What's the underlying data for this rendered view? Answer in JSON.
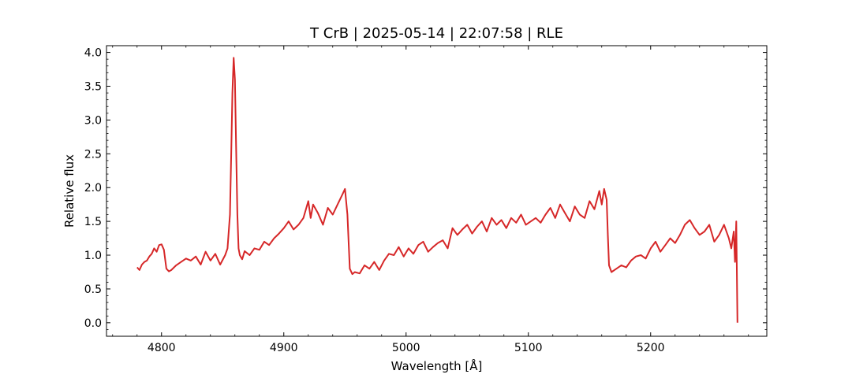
{
  "chart_data": {
    "type": "line",
    "title": "T CrB | 2025-05-14 | 22:07:58 | RLE",
    "xlabel": "Wavelength [Å]",
    "ylabel": "Relative flux",
    "xlim": [
      4755,
      5295
    ],
    "ylim": [
      -0.2,
      4.1
    ],
    "x_ticks": [
      4800,
      4900,
      5000,
      5100,
      5200
    ],
    "x_tick_labels": [
      "4800",
      "4900",
      "5000",
      "5100",
      "5200"
    ],
    "y_ticks": [
      0.0,
      0.5,
      1.0,
      1.5,
      2.0,
      2.5,
      3.0,
      3.5,
      4.0
    ],
    "y_tick_labels": [
      "0.0",
      "0.5",
      "1.0",
      "1.5",
      "2.0",
      "2.5",
      "3.0",
      "3.5",
      "4.0"
    ],
    "grid": false,
    "series": [
      {
        "color": "#d62728",
        "x": [
          4780,
          4782,
          4784,
          4786,
          4788,
          4790,
          4792,
          4794,
          4796,
          4798,
          4800,
          4802,
          4804,
          4806,
          4808,
          4812,
          4816,
          4820,
          4824,
          4828,
          4832,
          4836,
          4840,
          4844,
          4848,
          4852,
          4854,
          4856,
          4857,
          4858,
          4859,
          4860,
          4861,
          4862,
          4863,
          4864,
          4866,
          4868,
          4872,
          4876,
          4880,
          4884,
          4888,
          4892,
          4896,
          4900,
          4904,
          4908,
          4912,
          4916,
          4920,
          4922,
          4924,
          4928,
          4932,
          4936,
          4940,
          4944,
          4948,
          4950,
          4952,
          4953,
          4954,
          4956,
          4958,
          4962,
          4966,
          4970,
          4974,
          4978,
          4982,
          4986,
          4990,
          4994,
          4998,
          5002,
          5006,
          5010,
          5014,
          5018,
          5022,
          5026,
          5030,
          5034,
          5038,
          5042,
          5046,
          5050,
          5054,
          5058,
          5062,
          5066,
          5070,
          5074,
          5078,
          5082,
          5086,
          5090,
          5094,
          5098,
          5102,
          5106,
          5110,
          5114,
          5118,
          5122,
          5126,
          5130,
          5134,
          5138,
          5142,
          5146,
          5150,
          5154,
          5158,
          5160,
          5162,
          5164,
          5165,
          5166,
          5168,
          5172,
          5176,
          5180,
          5184,
          5188,
          5192,
          5196,
          5200,
          5204,
          5208,
          5212,
          5216,
          5220,
          5224,
          5228,
          5232,
          5236,
          5240,
          5244,
          5248,
          5252,
          5256,
          5260,
          5264,
          5266,
          5268,
          5269,
          5270,
          5271
        ],
        "y": [
          0.82,
          0.78,
          0.86,
          0.9,
          0.92,
          0.98,
          1.02,
          1.1,
          1.05,
          1.15,
          1.16,
          1.08,
          0.8,
          0.76,
          0.78,
          0.85,
          0.9,
          0.95,
          0.92,
          0.98,
          0.86,
          1.05,
          0.92,
          1.02,
          0.86,
          1.0,
          1.1,
          1.6,
          2.5,
          3.4,
          3.92,
          3.6,
          2.6,
          1.6,
          1.1,
          1.0,
          0.94,
          1.06,
          1.0,
          1.1,
          1.08,
          1.2,
          1.15,
          1.25,
          1.32,
          1.4,
          1.5,
          1.38,
          1.45,
          1.55,
          1.8,
          1.55,
          1.75,
          1.62,
          1.45,
          1.7,
          1.6,
          1.75,
          1.9,
          1.98,
          1.6,
          1.2,
          0.8,
          0.72,
          0.75,
          0.73,
          0.85,
          0.8,
          0.9,
          0.78,
          0.92,
          1.02,
          1.0,
          1.12,
          0.98,
          1.1,
          1.02,
          1.15,
          1.2,
          1.05,
          1.12,
          1.18,
          1.22,
          1.1,
          1.4,
          1.3,
          1.38,
          1.45,
          1.32,
          1.42,
          1.5,
          1.35,
          1.55,
          1.45,
          1.52,
          1.4,
          1.55,
          1.48,
          1.6,
          1.45,
          1.5,
          1.55,
          1.48,
          1.6,
          1.7,
          1.55,
          1.75,
          1.62,
          1.5,
          1.72,
          1.6,
          1.55,
          1.8,
          1.68,
          1.95,
          1.75,
          1.98,
          1.82,
          1.3,
          0.85,
          0.75,
          0.8,
          0.85,
          0.82,
          0.92,
          0.98,
          1.0,
          0.95,
          1.1,
          1.2,
          1.05,
          1.15,
          1.25,
          1.18,
          1.3,
          1.45,
          1.52,
          1.4,
          1.3,
          1.35,
          1.45,
          1.2,
          1.3,
          1.45,
          1.25,
          1.1,
          1.35,
          0.9,
          1.5,
          0.0
        ]
      }
    ]
  }
}
